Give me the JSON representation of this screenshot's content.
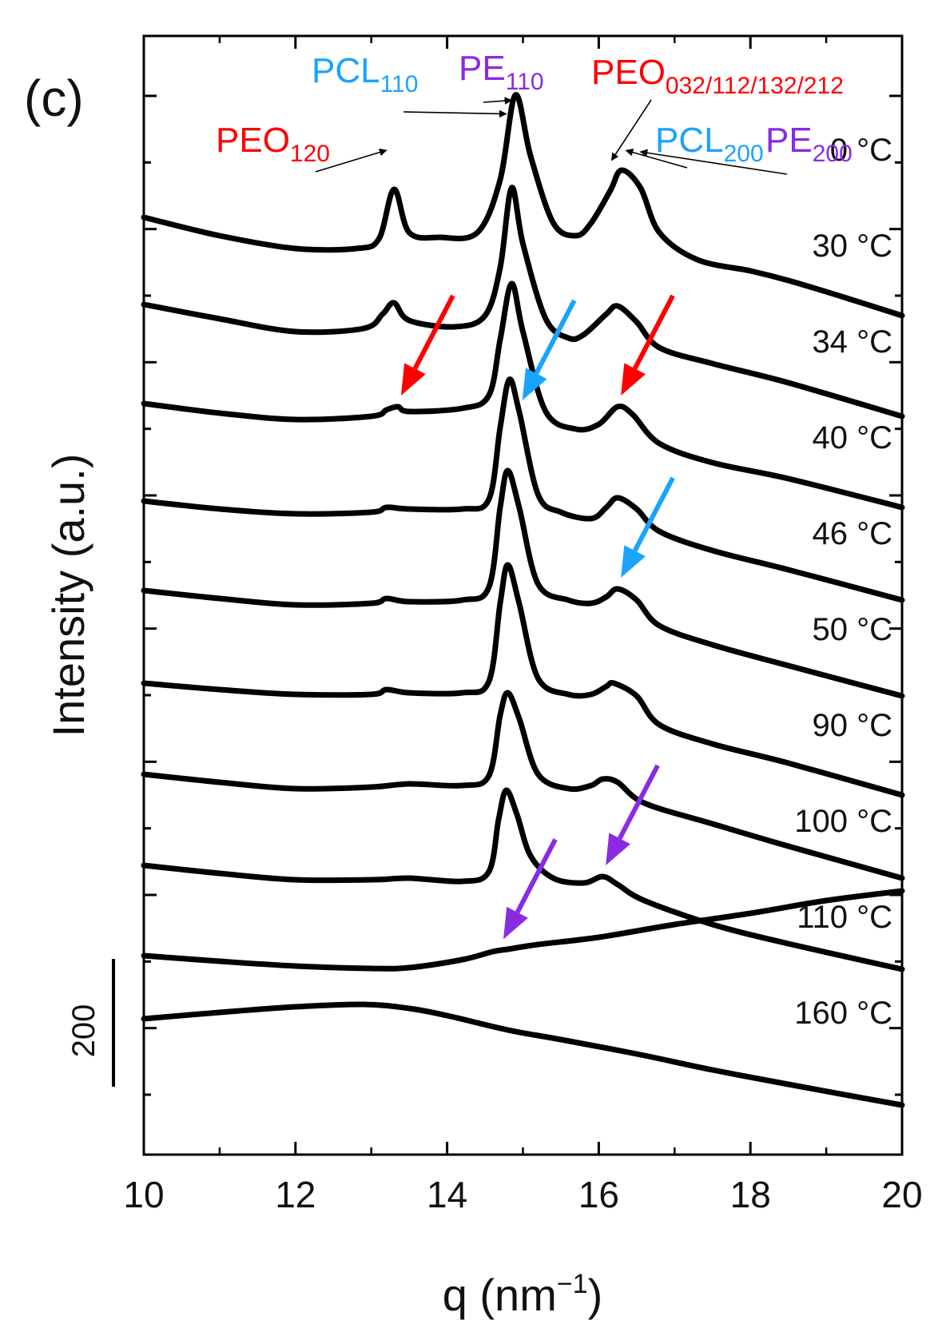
{
  "chart_data": {
    "type": "line",
    "panel_label": "(c)",
    "title": "",
    "xlabel": "q (nm",
    "xlabel_sup": "−1",
    "xlabel_close": ")",
    "ylabel": "Intensity (a.u.)",
    "xlim": [
      10,
      20
    ],
    "x_ticks": [
      10,
      12,
      14,
      16,
      18,
      20
    ],
    "x_tick_labels": [
      "10",
      "12",
      "14",
      "16",
      "18",
      "20"
    ],
    "y_ticks_offset": [
      0,
      200,
      400,
      600,
      800,
      1000,
      1200,
      1400,
      1600
    ],
    "y_ticks_count_per_side": 16,
    "scale_bar": {
      "label": "200",
      "value": 200
    },
    "colors": {
      "curve": "#000000",
      "PEO": "#ff0000",
      "PCL": "#1aa3ff",
      "PE": "#8a2be2",
      "annot": "#000000"
    },
    "series": [
      {
        "name": "0 °C",
        "label": "0 °C",
        "base": 5200,
        "points": [
          [
            10,
            4815
          ],
          [
            11,
            4700
          ],
          [
            12,
            4620
          ],
          [
            12.8,
            4620
          ],
          [
            13.1,
            4680
          ],
          [
            13.3,
            4990
          ],
          [
            13.5,
            4720
          ],
          [
            13.9,
            4690
          ],
          [
            14.4,
            4720
          ],
          [
            14.7,
            5050
          ],
          [
            14.9,
            5580
          ],
          [
            15.1,
            5200
          ],
          [
            15.4,
            4780
          ],
          [
            15.7,
            4700
          ],
          [
            15.9,
            4780
          ],
          [
            16.15,
            4980
          ],
          [
            16.3,
            5110
          ],
          [
            16.55,
            5000
          ],
          [
            16.8,
            4720
          ],
          [
            17.3,
            4550
          ],
          [
            18.0,
            4480
          ],
          [
            18.5,
            4420
          ],
          [
            19.2,
            4320
          ],
          [
            20,
            4200
          ]
        ],
        "peaks": [
          13.3,
          14.9,
          16.3
        ]
      },
      {
        "name": "30 °C",
        "label": "30 °C",
        "base": 4600,
        "points": [
          [
            10,
            4270
          ],
          [
            11,
            4180
          ],
          [
            12,
            4100
          ],
          [
            12.9,
            4120
          ],
          [
            13.15,
            4210
          ],
          [
            13.3,
            4280
          ],
          [
            13.5,
            4170
          ],
          [
            14.1,
            4130
          ],
          [
            14.5,
            4200
          ],
          [
            14.7,
            4500
          ],
          [
            14.85,
            5000
          ],
          [
            15.0,
            4650
          ],
          [
            15.3,
            4180
          ],
          [
            15.6,
            4060
          ],
          [
            15.8,
            4080
          ],
          [
            16.1,
            4210
          ],
          [
            16.25,
            4260
          ],
          [
            16.5,
            4160
          ],
          [
            16.8,
            4000
          ],
          [
            17.5,
            3900
          ],
          [
            18.5,
            3780
          ],
          [
            20,
            3570
          ]
        ],
        "peaks": [
          13.3,
          14.85,
          16.25
        ]
      },
      {
        "name": "34 °C",
        "label": "34 °C",
        "base": 4000,
        "points": [
          [
            10,
            3650
          ],
          [
            11,
            3590
          ],
          [
            12,
            3550
          ],
          [
            13,
            3570
          ],
          [
            13.2,
            3610
          ],
          [
            13.35,
            3630
          ],
          [
            13.5,
            3600
          ],
          [
            14.2,
            3620
          ],
          [
            14.55,
            3700
          ],
          [
            14.7,
            4050
          ],
          [
            14.85,
            4400
          ],
          [
            15.0,
            4100
          ],
          [
            15.3,
            3600
          ],
          [
            15.7,
            3490
          ],
          [
            16.0,
            3520
          ],
          [
            16.25,
            3630
          ],
          [
            16.45,
            3580
          ],
          [
            16.8,
            3400
          ],
          [
            17.5,
            3280
          ],
          [
            18.5,
            3180
          ],
          [
            20,
            3000
          ]
        ],
        "peaks": [
          13.35,
          14.85,
          16.25
        ]
      },
      {
        "name": "40 °C",
        "label": "40 °C",
        "base": 3400,
        "points": [
          [
            10,
            3040
          ],
          [
            11,
            2990
          ],
          [
            12,
            2960
          ],
          [
            13,
            2970
          ],
          [
            13.2,
            3000
          ],
          [
            13.5,
            2990
          ],
          [
            14.2,
            2990
          ],
          [
            14.55,
            3050
          ],
          [
            14.7,
            3500
          ],
          [
            14.82,
            3800
          ],
          [
            14.95,
            3600
          ],
          [
            15.2,
            3080
          ],
          [
            15.5,
            2970
          ],
          [
            15.9,
            2930
          ],
          [
            16.1,
            3000
          ],
          [
            16.25,
            3060
          ],
          [
            16.5,
            2990
          ],
          [
            16.8,
            2850
          ],
          [
            17.5,
            2730
          ],
          [
            18.5,
            2610
          ],
          [
            20,
            2420
          ]
        ],
        "peaks": [
          14.82,
          16.25
        ]
      },
      {
        "name": "46 °C",
        "label": "46 °C",
        "base": 2800,
        "points": [
          [
            10,
            2480
          ],
          [
            11,
            2430
          ],
          [
            12,
            2390
          ],
          [
            13,
            2400
          ],
          [
            13.2,
            2430
          ],
          [
            13.5,
            2410
          ],
          [
            14.2,
            2420
          ],
          [
            14.55,
            2500
          ],
          [
            14.7,
            3000
          ],
          [
            14.8,
            3230
          ],
          [
            14.95,
            3000
          ],
          [
            15.2,
            2520
          ],
          [
            15.6,
            2420
          ],
          [
            15.9,
            2400
          ],
          [
            16.1,
            2440
          ],
          [
            16.25,
            2490
          ],
          [
            16.5,
            2420
          ],
          [
            16.8,
            2260
          ],
          [
            17.5,
            2140
          ],
          [
            18.5,
            2010
          ],
          [
            20,
            1820
          ]
        ],
        "peaks": [
          14.8,
          16.25
        ]
      },
      {
        "name": "50 °C",
        "label": "50 °C",
        "base": 2200,
        "points": [
          [
            10,
            1900
          ],
          [
            11,
            1860
          ],
          [
            12,
            1830
          ],
          [
            13,
            1830
          ],
          [
            13.2,
            1860
          ],
          [
            13.5,
            1840
          ],
          [
            14.2,
            1840
          ],
          [
            14.55,
            1910
          ],
          [
            14.7,
            2400
          ],
          [
            14.8,
            2640
          ],
          [
            14.95,
            2400
          ],
          [
            15.2,
            1930
          ],
          [
            15.6,
            1830
          ],
          [
            15.9,
            1830
          ],
          [
            16.1,
            1880
          ],
          [
            16.2,
            1900
          ],
          [
            16.5,
            1820
          ],
          [
            16.8,
            1640
          ],
          [
            17.5,
            1520
          ],
          [
            18.5,
            1400
          ],
          [
            20,
            1200
          ]
        ],
        "peaks": [
          14.8,
          16.2
        ]
      },
      {
        "name": "90 °C",
        "label": "90 °C",
        "base": 1600,
        "points": [
          [
            10,
            1330
          ],
          [
            11,
            1280
          ],
          [
            12,
            1240
          ],
          [
            13,
            1250
          ],
          [
            13.5,
            1270
          ],
          [
            14.2,
            1260
          ],
          [
            14.55,
            1320
          ],
          [
            14.7,
            1700
          ],
          [
            14.8,
            1840
          ],
          [
            14.95,
            1680
          ],
          [
            15.2,
            1330
          ],
          [
            15.6,
            1240
          ],
          [
            15.9,
            1260
          ],
          [
            16.05,
            1300
          ],
          [
            16.25,
            1280
          ],
          [
            16.6,
            1150
          ],
          [
            17.5,
            1020
          ],
          [
            18.5,
            880
          ],
          [
            20,
            680
          ]
        ],
        "peaks": [
          14.8,
          16.05
        ]
      },
      {
        "name": "100 °C",
        "label": "100 °C",
        "base": 1000,
        "points": [
          [
            10,
            760
          ],
          [
            11,
            710
          ],
          [
            12,
            670
          ],
          [
            13,
            670
          ],
          [
            13.5,
            680
          ],
          [
            14.2,
            660
          ],
          [
            14.55,
            720
          ],
          [
            14.68,
            1050
          ],
          [
            14.78,
            1230
          ],
          [
            14.92,
            1080
          ],
          [
            15.1,
            820
          ],
          [
            15.4,
            680
          ],
          [
            15.8,
            650
          ],
          [
            16.05,
            690
          ],
          [
            16.25,
            640
          ],
          [
            16.6,
            540
          ],
          [
            17.5,
            390
          ],
          [
            18.5,
            270
          ],
          [
            20,
            110
          ]
        ],
        "peaks": [
          14.78,
          16.05
        ]
      },
      {
        "name": "110 °C",
        "label": "110 °C",
        "base": 400,
        "points": [
          [
            10,
            195
          ],
          [
            11,
            160
          ],
          [
            12,
            130
          ],
          [
            13,
            115
          ],
          [
            13.5,
            120
          ],
          [
            14.2,
            170
          ],
          [
            14.6,
            220
          ],
          [
            14.8,
            235
          ],
          [
            15.2,
            265
          ],
          [
            16,
            310
          ],
          [
            17,
            390
          ],
          [
            18,
            460
          ],
          [
            19,
            540
          ],
          [
            20,
            600
          ]
        ],
        "peaks": [
          14.7
        ]
      },
      {
        "name": "160 °C",
        "label": "160 °C",
        "base": -200,
        "points": [
          [
            10,
            -200
          ],
          [
            11,
            -160
          ],
          [
            12,
            -125
          ],
          [
            12.9,
            -110
          ],
          [
            13.5,
            -135
          ],
          [
            14,
            -180
          ],
          [
            14.8,
            -270
          ],
          [
            15.5,
            -330
          ],
          [
            16.5,
            -420
          ],
          [
            17.5,
            -520
          ],
          [
            18.5,
            -610
          ],
          [
            19.3,
            -680
          ],
          [
            20,
            -740
          ]
        ],
        "peaks": []
      }
    ],
    "annotations": [
      {
        "id": "PEO120",
        "text": "PEO",
        "sub": "120",
        "color": "PEO"
      },
      {
        "id": "PCL110",
        "text": "PCL",
        "sub": "110",
        "color": "PCL"
      },
      {
        "id": "PE110",
        "text": "PE",
        "sub": "110",
        "color": "PE"
      },
      {
        "id": "PEO_multi",
        "text": "PEO",
        "sub": "032/112/132/212",
        "color": "PEO"
      },
      {
        "id": "PCL200",
        "text": "PCL",
        "sub": "200",
        "color": "PCL"
      },
      {
        "id": "PE200",
        "text": "PE",
        "sub": "200",
        "color": "PE"
      }
    ],
    "colored_arrows": [
      {
        "color": "PEO",
        "target_series": "34 °C",
        "target_x": 13.35
      },
      {
        "color": "PEO",
        "target_series": "34 °C",
        "target_x": 16.25
      },
      {
        "color": "PCL",
        "target_series": "40 °C",
        "target_x": 14.95
      },
      {
        "color": "PCL",
        "target_series": "46 °C",
        "target_x": 16.25
      },
      {
        "color": "PE",
        "target_series": "100 °C",
        "target_x": 16.05
      },
      {
        "color": "PE",
        "target_series": "110 °C",
        "target_x": 14.7
      }
    ]
  }
}
